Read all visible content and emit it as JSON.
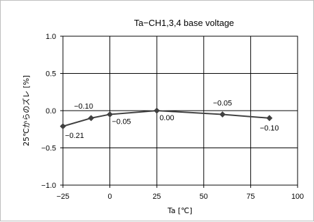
{
  "chart_data": {
    "type": "line",
    "title": "Ta−CH1,3,4 base voltage",
    "xlabel": "Ta [℃]",
    "ylabel": "25℃からのズレ [%]",
    "xlim": [
      -25,
      100
    ],
    "ylim": [
      -1.0,
      1.0
    ],
    "x_ticks": [
      -25,
      0,
      25,
      50,
      75,
      100
    ],
    "x_tick_labels": [
      "−25",
      "0",
      "25",
      "50",
      "75",
      "100"
    ],
    "y_ticks": [
      1.0,
      0.5,
      0.0,
      -0.5,
      -1.0
    ],
    "y_tick_labels": [
      "1.0",
      "0.5",
      "0.0",
      "−0.5",
      "−1.0"
    ],
    "grid": true,
    "legend": "none",
    "series": [
      {
        "x": [
          -25,
          -10,
          0,
          25,
          60,
          85
        ],
        "y": [
          -0.21,
          -0.1,
          -0.05,
          0.0,
          -0.05,
          -0.1
        ],
        "data_labels": [
          "−0.21",
          "−0.10",
          "−0.05",
          "0.00",
          "−0.05",
          "−0.10"
        ],
        "color": "#404040",
        "marker": "diamond"
      }
    ]
  }
}
